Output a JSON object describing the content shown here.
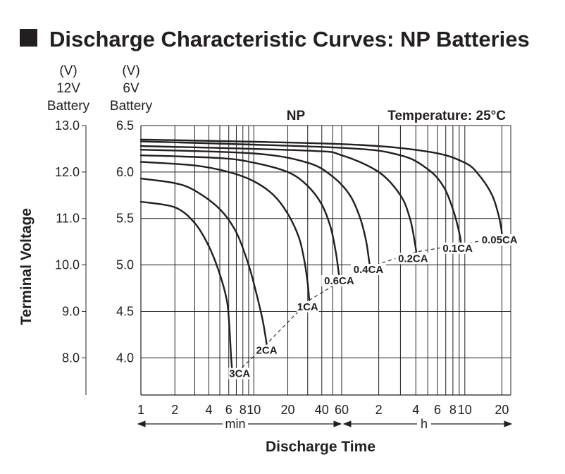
{
  "title": "Discharge Characteristic Curves: NP Batteries",
  "chart_data": {
    "type": "line",
    "title": "Discharge Characteristic Curves: NP Batteries",
    "subtitle": "NP",
    "annotation": "Temperature: 25°C",
    "xlabel": "Discharge Time",
    "ylabel": "Terminal Voltage",
    "x_unit_left": "min",
    "x_unit_right": "h",
    "x_scale": "log",
    "x_unit": "minutes",
    "x_tick_labels": [
      "1",
      "2",
      "4",
      "6",
      "8",
      "10",
      "20",
      "40",
      "60",
      "2",
      "4",
      "6",
      "8",
      "10",
      "20"
    ],
    "y12_header": [
      "(V)",
      "12V",
      "Battery"
    ],
    "y6_header": [
      "(V)",
      "6V",
      "Battery"
    ],
    "y12_ticks": [
      "13.0",
      "12.0",
      "11.0",
      "10.0",
      "9.0",
      "8.0"
    ],
    "y6_ticks": [
      "6.5",
      "6.0",
      "5.5",
      "5.0",
      "4.5",
      "4.0"
    ],
    "y6_range": [
      3.6,
      6.5
    ],
    "grid": true,
    "series": [
      {
        "name": "3CA",
        "end_label_at": [
          7.5,
          3.8
        ],
        "points": [
          [
            1,
            5.68
          ],
          [
            2,
            5.62
          ],
          [
            3,
            5.45
          ],
          [
            4,
            5.2
          ],
          [
            5,
            4.9
          ],
          [
            5.8,
            4.6
          ],
          [
            6.1,
            4.3
          ],
          [
            6.3,
            4.0
          ],
          [
            6.5,
            3.8
          ]
        ]
      },
      {
        "name": "2CA",
        "end_label_at": [
          13,
          4.05
        ],
        "points": [
          [
            1,
            5.93
          ],
          [
            2,
            5.88
          ],
          [
            3,
            5.8
          ],
          [
            5,
            5.6
          ],
          [
            7,
            5.35
          ],
          [
            9,
            5.0
          ],
          [
            10.5,
            4.7
          ],
          [
            12,
            4.4
          ],
          [
            13,
            4.15
          ]
        ]
      },
      {
        "name": "1CA",
        "end_label_at": [
          30,
          4.52
        ],
        "points": [
          [
            1,
            6.11
          ],
          [
            3,
            6.07
          ],
          [
            6,
            6.0
          ],
          [
            10,
            5.9
          ],
          [
            15,
            5.75
          ],
          [
            20,
            5.55
          ],
          [
            25,
            5.3
          ],
          [
            28,
            5.05
          ],
          [
            30,
            4.8
          ],
          [
            31,
            4.62
          ]
        ]
      },
      {
        "name": "0.6CA",
        "end_label_at": [
          57,
          4.8
        ],
        "points": [
          [
            1,
            6.18
          ],
          [
            5,
            6.15
          ],
          [
            10,
            6.1
          ],
          [
            20,
            6.0
          ],
          [
            30,
            5.85
          ],
          [
            40,
            5.65
          ],
          [
            48,
            5.4
          ],
          [
            53,
            5.15
          ],
          [
            56,
            4.95
          ],
          [
            58,
            4.82
          ]
        ]
      },
      {
        "name": "0.4CA",
        "end_label_at": [
          99,
          4.92
        ],
        "points": [
          [
            1,
            6.24
          ],
          [
            10,
            6.2
          ],
          [
            30,
            6.1
          ],
          [
            50,
            5.95
          ],
          [
            70,
            5.75
          ],
          [
            85,
            5.5
          ],
          [
            95,
            5.25
          ],
          [
            100,
            5.05
          ],
          [
            102,
            4.98
          ]
        ]
      },
      {
        "name": "0.2CA",
        "end_label_at": [
          228,
          5.04
        ],
        "points": [
          [
            1,
            6.28
          ],
          [
            30,
            6.23
          ],
          [
            60,
            6.18
          ],
          [
            120,
            6.0
          ],
          [
            180,
            5.75
          ],
          [
            215,
            5.5
          ],
          [
            235,
            5.25
          ],
          [
            242,
            5.14
          ]
        ]
      },
      {
        "name": "0.1CA",
        "end_label_at": [
          525,
          5.15
        ],
        "points": [
          [
            1,
            6.33
          ],
          [
            60,
            6.26
          ],
          [
            180,
            6.18
          ],
          [
            300,
            6.03
          ],
          [
            400,
            5.85
          ],
          [
            480,
            5.6
          ],
          [
            540,
            5.35
          ],
          [
            560,
            5.22
          ]
        ]
      },
      {
        "name": "0.05CA",
        "end_label_at": [
          1150,
          5.24
        ],
        "points": [
          [
            1,
            6.35
          ],
          [
            60,
            6.3
          ],
          [
            300,
            6.22
          ],
          [
            600,
            6.1
          ],
          [
            800,
            5.95
          ],
          [
            1000,
            5.75
          ],
          [
            1120,
            5.55
          ],
          [
            1190,
            5.38
          ],
          [
            1200,
            5.3
          ]
        ]
      }
    ]
  }
}
